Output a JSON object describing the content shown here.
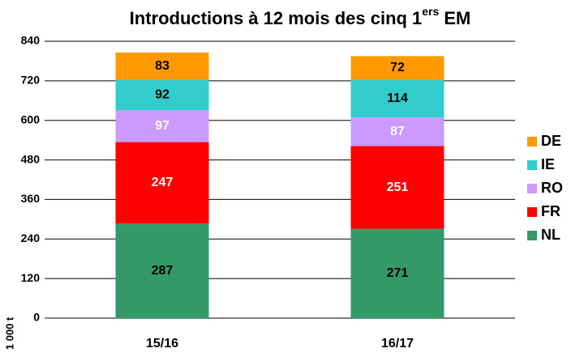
{
  "chart_data": {
    "type": "stacked_bar",
    "title_parts": [
      "Introductions à 12 mois des cinq 1",
      "ers",
      "EM"
    ],
    "y_label": "1 000 t",
    "categories": [
      "15/16",
      "16/17"
    ],
    "series": [
      {
        "name": "NL",
        "color": "#339966",
        "label_color": "#000000",
        "values": [
          287,
          271
        ]
      },
      {
        "name": "FR",
        "color": "#ff0000",
        "label_color": "#ffffff",
        "values": [
          247,
          251
        ]
      },
      {
        "name": "RO",
        "color": "#cc99ff",
        "label_color": "#ffffff",
        "values": [
          97,
          87
        ]
      },
      {
        "name": "IE",
        "color": "#33cccc",
        "label_color": "#000000",
        "values": [
          92,
          114
        ]
      },
      {
        "name": "DE",
        "color": "#ff9900",
        "label_color": "#000000",
        "values": [
          83,
          72
        ]
      }
    ],
    "ylim": [
      0,
      840
    ],
    "yticks": [
      0,
      120,
      240,
      360,
      480,
      600,
      720,
      840
    ],
    "grid": true,
    "legend": "right"
  }
}
